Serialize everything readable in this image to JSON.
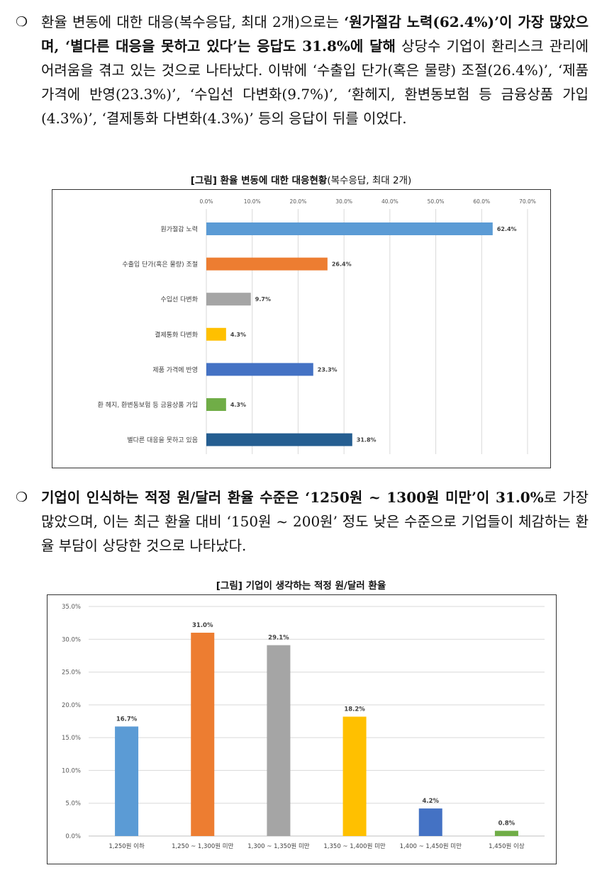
{
  "paragraphs": [
    {
      "bullet": "❍",
      "runs": [
        {
          "t": "환율 변동에 대한 대응(복수응답, 최대 2개)으로는 ",
          "b": false
        },
        {
          "t": "‘원가절감 노력(62.4%)’이 가장 많았으며, ‘별다른 대응을 못하고 있다’는 응답도 31.8%에 달해",
          "b": true
        },
        {
          "t": " 상당수 기업이 환리스크 관리에 어려움을 겪고 있는 것으로 나타났다. 이밖에 ‘수출입 단가(혹은 물량) 조절(26.4%)’, ‘제품 가격에 반영(23.3%)’, ‘수입선 다변화(9.7%)’, ‘환헤지, 환변동보험 등 금융상품 가입(4.3%)’, ‘결제통화 다변화(4.3%)’ 등의 응답이 뒤를 이었다.",
          "b": false
        }
      ]
    },
    {
      "bullet": "❍",
      "runs": [
        {
          "t": "기업이 인식하는 적정 원/달러 환율 수준은 ‘1250원 ~ 1300원 미만’이 31.0%",
          "b": true
        },
        {
          "t": "로 가장 많았으며, 이는 최근 환율 대비 ‘150원 ~ 200원’ 정도 낮은 수준으로 기업들이 체감하는 환율 부담이 상당한 것으로 나타났다.",
          "b": false
        }
      ]
    }
  ],
  "figure1": {
    "title_bold": "[그림] 환율 변동에 대한 대응현황",
    "title_rest": "(복수응답, 최대 2개)"
  },
  "figure2": {
    "title_bold": "[그림] 기업이 생각하는 적정 원/달러 환율"
  },
  "chart_data": [
    {
      "type": "bar",
      "orientation": "horizontal",
      "categories": [
        "원가절감 노력",
        "수출입 단가(혹은 물량) 조절",
        "수입선 다변화",
        "결제통화 다변화",
        "제품 가격에 반영",
        "환 헤지, 환변동보험 등 금융상품 가입",
        "별다른 대응을 못하고 있음"
      ],
      "values": [
        62.4,
        26.4,
        9.7,
        4.3,
        23.3,
        4.3,
        31.8
      ],
      "value_labels": [
        "62.4%",
        "26.4%",
        "9.7%",
        "4.3%",
        "23.3%",
        "4.3%",
        "31.8%"
      ],
      "colors": [
        "#5b9bd5",
        "#ed7d31",
        "#a5a5a5",
        "#ffc000",
        "#4472c4",
        "#70ad47",
        "#255e91"
      ],
      "xlim": [
        0,
        70
      ],
      "ticks": [
        "0.0%",
        "10.0%",
        "20.0%",
        "30.0%",
        "40.0%",
        "50.0%",
        "60.0%",
        "70.0%"
      ],
      "axis_position": "top",
      "grid": true
    },
    {
      "type": "bar",
      "orientation": "vertical",
      "categories": [
        "1,250원 이하",
        "1,250 ~ 1,300원 미만",
        "1,300 ~ 1,350원 미만",
        "1,350 ~ 1,400원 미만",
        "1,400 ~ 1,450원 미만",
        "1,450원 이상"
      ],
      "values": [
        16.7,
        31.0,
        29.1,
        18.2,
        4.2,
        0.8
      ],
      "value_labels": [
        "16.7%",
        "31.0%",
        "29.1%",
        "18.2%",
        "4.2%",
        "0.8%"
      ],
      "colors": [
        "#5b9bd5",
        "#ed7d31",
        "#a5a5a5",
        "#ffc000",
        "#4472c4",
        "#70ad47"
      ],
      "ylim": [
        0,
        35
      ],
      "ticks": [
        "0.0%",
        "5.0%",
        "10.0%",
        "15.0%",
        "20.0%",
        "25.0%",
        "30.0%",
        "35.0%"
      ],
      "grid": true
    }
  ]
}
